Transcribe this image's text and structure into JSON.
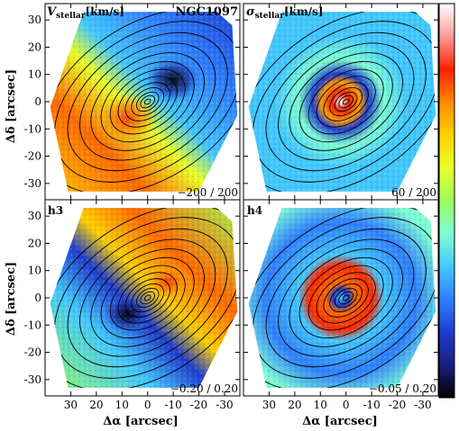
{
  "figure": {
    "ylabel": "Δδ [arcsec]",
    "xlabel": "Δα [arcsec]"
  },
  "chart_data": {
    "type": "heatmap",
    "title": "NGC1097",
    "xlabel": "Δα [arcsec]",
    "ylabel": "Δδ [arcsec]",
    "x_ticks": [
      30,
      20,
      10,
      0,
      -10,
      -20,
      -30
    ],
    "y_ticks": [
      30,
      20,
      10,
      0,
      -10,
      -20,
      -30
    ],
    "xlim": [
      40,
      -36
    ],
    "ylim": [
      -36,
      36
    ],
    "grid": false,
    "colorbar": {
      "position": "right",
      "colors": [
        "#000000",
        "#1a1f80",
        "#1f3dd0",
        "#2f7fff",
        "#43c8ff",
        "#7fffd4",
        "#9bff5a",
        "#e8ff2a",
        "#ffd000",
        "#ff8a00",
        "#ff1e00",
        "#ff9a9a",
        "#ffffff"
      ]
    },
    "panels": [
      {
        "name": "velocity",
        "label_main": "V",
        "label_sub": "stellar",
        "label_unit": "[km/s]",
        "range_text": "−200 / 200",
        "vmin": -200,
        "vmax": 200
      },
      {
        "name": "dispersion",
        "label_main": "σ",
        "label_sub": "stellar",
        "label_unit": "[km/s]",
        "range_text": "60 / 200",
        "vmin": 60,
        "vmax": 200
      },
      {
        "name": "h3",
        "label_main": "h3",
        "label_sub": "",
        "label_unit": "",
        "range_text": "−0.20 / 0.20",
        "vmin": -0.2,
        "vmax": 0.2
      },
      {
        "name": "h4",
        "label_main": "h4",
        "label_sub": "",
        "label_unit": "",
        "range_text": "−0.05 / 0.20",
        "vmin": -0.05,
        "vmax": 0.2
      }
    ]
  }
}
